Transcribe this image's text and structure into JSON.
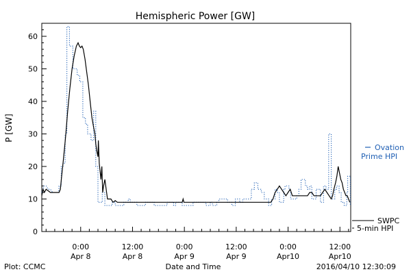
{
  "chart_data": {
    "type": "line",
    "title": "Hemispheric Power [GW]",
    "ylabel": "P [GW]",
    "xlabel": "Date and Time",
    "ylim": [
      0,
      64
    ],
    "xlim": [
      -9,
      62.5
    ],
    "x_unit": "hours relative to 2016-04-08 00:00",
    "y_ticks": [
      0,
      10,
      20,
      30,
      40,
      50,
      60
    ],
    "x_ticks": [
      {
        "x": 0,
        "line1": "0:00",
        "line2": "Apr 8"
      },
      {
        "x": 12,
        "line1": "12:00",
        "line2": "Apr 8"
      },
      {
        "x": 24,
        "line1": "0:00",
        "line2": "Apr 9"
      },
      {
        "x": 36,
        "line1": "12:00",
        "line2": "Apr 9"
      },
      {
        "x": 48,
        "line1": "0:00",
        "line2": "Apr10"
      },
      {
        "x": 60,
        "line1": "12:00",
        "line2": "Apr10"
      }
    ],
    "grid": false,
    "series": [
      {
        "name": "5-min HPI",
        "legend_label_1": "SWPC",
        "legend_label_2": "5-min HPI",
        "color": "#000000",
        "style": "solid",
        "points": [
          [
            -9,
            11
          ],
          [
            -8.7,
            13
          ],
          [
            -8.4,
            12
          ],
          [
            -8,
            13
          ],
          [
            -7.5,
            12.5
          ],
          [
            -7,
            12
          ],
          [
            -6.5,
            12
          ],
          [
            -6,
            12
          ],
          [
            -5.5,
            12
          ],
          [
            -5,
            12
          ],
          [
            -4.7,
            13
          ],
          [
            -4.4,
            17
          ],
          [
            -4,
            22
          ],
          [
            -3.5,
            29
          ],
          [
            -3,
            37
          ],
          [
            -2.5,
            44
          ],
          [
            -2,
            50
          ],
          [
            -1.5,
            54
          ],
          [
            -1,
            57
          ],
          [
            -0.6,
            58
          ],
          [
            -0.3,
            57
          ],
          [
            0,
            56.5
          ],
          [
            0.3,
            57
          ],
          [
            0.6,
            56
          ],
          [
            1,
            53
          ],
          [
            1.4,
            49
          ],
          [
            1.8,
            45
          ],
          [
            2.2,
            40
          ],
          [
            2.6,
            35
          ],
          [
            3,
            32
          ],
          [
            3.3,
            30
          ],
          [
            3.5,
            27
          ],
          [
            3.7,
            25
          ],
          [
            4,
            23
          ],
          [
            4.1,
            28
          ],
          [
            4.3,
            21
          ],
          [
            4.7,
            16
          ],
          [
            4.9,
            20
          ],
          [
            5.1,
            12
          ],
          [
            5.3,
            14
          ],
          [
            5.6,
            16
          ],
          [
            5.9,
            13
          ],
          [
            6.2,
            10
          ],
          [
            6.5,
            10
          ],
          [
            7,
            10
          ],
          [
            7.5,
            9
          ],
          [
            8,
            9.5
          ],
          [
            8.5,
            9
          ],
          [
            9,
            9
          ],
          [
            12,
            9
          ],
          [
            15,
            9
          ],
          [
            18,
            9
          ],
          [
            21,
            9
          ],
          [
            23.5,
            9
          ],
          [
            23.7,
            10
          ],
          [
            23.9,
            9
          ],
          [
            26,
            9
          ],
          [
            29,
            9
          ],
          [
            32,
            9
          ],
          [
            35,
            9
          ],
          [
            38,
            9
          ],
          [
            41,
            9
          ],
          [
            44,
            9
          ],
          [
            44.5,
            10
          ],
          [
            45,
            12
          ],
          [
            45.5,
            13
          ],
          [
            46,
            14
          ],
          [
            46.5,
            13
          ],
          [
            47,
            12
          ],
          [
            47.5,
            11
          ],
          [
            48,
            12
          ],
          [
            48.5,
            13
          ],
          [
            49,
            11
          ],
          [
            49.5,
            11
          ],
          [
            50,
            11
          ],
          [
            50.5,
            11
          ],
          [
            51,
            11
          ],
          [
            51.5,
            11
          ],
          [
            52,
            11
          ],
          [
            52.5,
            11
          ],
          [
            53,
            12
          ],
          [
            53.5,
            12
          ],
          [
            54,
            11
          ],
          [
            54.5,
            11
          ],
          [
            55,
            11
          ],
          [
            55.5,
            11
          ],
          [
            56,
            12
          ],
          [
            56.5,
            13
          ],
          [
            57,
            12
          ],
          [
            57.5,
            11
          ],
          [
            58,
            10
          ],
          [
            58.3,
            11
          ],
          [
            58.6,
            13
          ],
          [
            59,
            15
          ],
          [
            59.3,
            17
          ],
          [
            59.6,
            20
          ],
          [
            59.9,
            18
          ],
          [
            60.2,
            16
          ],
          [
            60.5,
            15
          ],
          [
            60.8,
            13
          ],
          [
            61.1,
            12
          ],
          [
            61.4,
            11
          ],
          [
            61.7,
            11
          ],
          [
            62,
            10
          ],
          [
            62.3,
            9
          ]
        ]
      },
      {
        "name": "Ovation Prime HPI",
        "legend_label_1": "Ovation",
        "legend_label_2": "Prime HPI",
        "color": "#1f5fb4",
        "style": "dotted",
        "points": [
          [
            -9,
            12
          ],
          [
            -8.5,
            14
          ],
          [
            -8,
            14
          ],
          [
            -7.5,
            13
          ],
          [
            -7,
            13
          ],
          [
            -6.5,
            12
          ],
          [
            -6,
            12
          ],
          [
            -5.5,
            12
          ],
          [
            -5.1,
            12
          ],
          [
            -5,
            14
          ],
          [
            -4.5,
            14
          ],
          [
            -4.5,
            20
          ],
          [
            -4.1,
            20
          ],
          [
            -4.1,
            21
          ],
          [
            -3.6,
            21
          ],
          [
            -3.6,
            30
          ],
          [
            -3.2,
            30
          ],
          [
            -3.2,
            63
          ],
          [
            -2.6,
            63
          ],
          [
            -2.6,
            57
          ],
          [
            -1.8,
            57
          ],
          [
            -1.8,
            50
          ],
          [
            -0.8,
            50
          ],
          [
            -0.8,
            48
          ],
          [
            -0.2,
            48
          ],
          [
            -0.2,
            46
          ],
          [
            0.5,
            46
          ],
          [
            0.5,
            35
          ],
          [
            1.1,
            35
          ],
          [
            1.1,
            33
          ],
          [
            1.6,
            33
          ],
          [
            1.6,
            30
          ],
          [
            2.4,
            30
          ],
          [
            2.4,
            28
          ],
          [
            3,
            28
          ],
          [
            3,
            37
          ],
          [
            3.5,
            37
          ],
          [
            3.5,
            20
          ],
          [
            4,
            20
          ],
          [
            4,
            9
          ],
          [
            5,
            9
          ],
          [
            5,
            12
          ],
          [
            5.6,
            12
          ],
          [
            5.6,
            8
          ],
          [
            7.3,
            8
          ],
          [
            7.3,
            9
          ],
          [
            8,
            9
          ],
          [
            8,
            8
          ],
          [
            10,
            8
          ],
          [
            10,
            9
          ],
          [
            11,
            9
          ],
          [
            11,
            10
          ],
          [
            11.5,
            10
          ],
          [
            11.5,
            9
          ],
          [
            13,
            9
          ],
          [
            13,
            8
          ],
          [
            15,
            8
          ],
          [
            15,
            9
          ],
          [
            17,
            9
          ],
          [
            17,
            8
          ],
          [
            20,
            8
          ],
          [
            20,
            9
          ],
          [
            21.5,
            9
          ],
          [
            21.5,
            8
          ],
          [
            22,
            8
          ],
          [
            22,
            9
          ],
          [
            23.5,
            9
          ],
          [
            23.5,
            8
          ],
          [
            26,
            8
          ],
          [
            26,
            9
          ],
          [
            29,
            9
          ],
          [
            29,
            8
          ],
          [
            30,
            8
          ],
          [
            30,
            9
          ],
          [
            30.5,
            9
          ],
          [
            30.5,
            8
          ],
          [
            31.5,
            8
          ],
          [
            31.5,
            9
          ],
          [
            32,
            9
          ],
          [
            32,
            10
          ],
          [
            34,
            10
          ],
          [
            34,
            9
          ],
          [
            35,
            9
          ],
          [
            35,
            8
          ],
          [
            35.8,
            8
          ],
          [
            35.8,
            10
          ],
          [
            36.8,
            10
          ],
          [
            36.8,
            9
          ],
          [
            37.5,
            9
          ],
          [
            37.5,
            10
          ],
          [
            39.5,
            10
          ],
          [
            39.5,
            13
          ],
          [
            40.2,
            13
          ],
          [
            40.2,
            15
          ],
          [
            41,
            15
          ],
          [
            41,
            13
          ],
          [
            41.8,
            13
          ],
          [
            41.8,
            12
          ],
          [
            42.5,
            12
          ],
          [
            42.5,
            10
          ],
          [
            43.5,
            10
          ],
          [
            43.5,
            8
          ],
          [
            44.2,
            8
          ],
          [
            44.2,
            10
          ],
          [
            45,
            10
          ],
          [
            45,
            13
          ],
          [
            45.5,
            13
          ],
          [
            45.5,
            12
          ],
          [
            46,
            12
          ],
          [
            46,
            9
          ],
          [
            47,
            9
          ],
          [
            47,
            13
          ],
          [
            47.3,
            13
          ],
          [
            47.3,
            14
          ],
          [
            48.2,
            14
          ],
          [
            48.2,
            13
          ],
          [
            48.6,
            13
          ],
          [
            48.6,
            10
          ],
          [
            50,
            10
          ],
          [
            50,
            11
          ],
          [
            50.5,
            11
          ],
          [
            50.5,
            13
          ],
          [
            51,
            13
          ],
          [
            51,
            16
          ],
          [
            52,
            16
          ],
          [
            52,
            14
          ],
          [
            52.5,
            14
          ],
          [
            52.5,
            13
          ],
          [
            53,
            13
          ],
          [
            53,
            14
          ],
          [
            53.5,
            14
          ],
          [
            53.5,
            10
          ],
          [
            54.5,
            10
          ],
          [
            54.5,
            13
          ],
          [
            55.5,
            13
          ],
          [
            55.5,
            9
          ],
          [
            56.2,
            9
          ],
          [
            56.2,
            14
          ],
          [
            56.8,
            14
          ],
          [
            56.8,
            13
          ],
          [
            57.4,
            13
          ],
          [
            57.4,
            30
          ],
          [
            58,
            30
          ],
          [
            58,
            10
          ],
          [
            58.8,
            10
          ],
          [
            58.8,
            13
          ],
          [
            59.2,
            13
          ],
          [
            59.2,
            14
          ],
          [
            59.8,
            14
          ],
          [
            59.8,
            12
          ],
          [
            60.3,
            12
          ],
          [
            60.3,
            9
          ],
          [
            61,
            9
          ],
          [
            61,
            8
          ],
          [
            61.6,
            8
          ],
          [
            61.6,
            12
          ],
          [
            61.8,
            12
          ],
          [
            61.8,
            17
          ],
          [
            62.4,
            17
          ],
          [
            62.4,
            8
          ]
        ]
      }
    ]
  },
  "footer": {
    "plot_credit": "Plot: CCMC",
    "timestamp": "2016/04/10 12:30:09"
  }
}
